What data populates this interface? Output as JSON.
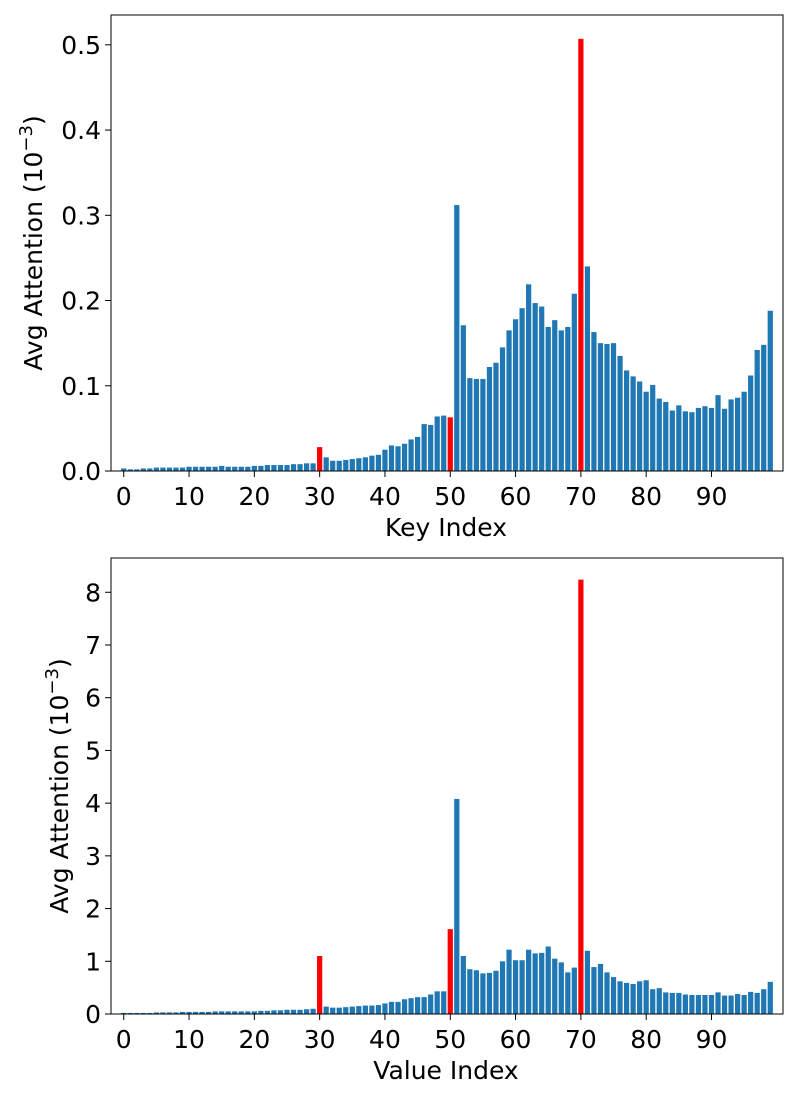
{
  "chart_data": [
    {
      "type": "bar",
      "xlabel": "Key Index",
      "ylabel": "Avg Attention (10",
      "ylabel_exponent": "−3",
      "ylabel_suffix": ")",
      "ylim": [
        0,
        0.535
      ],
      "yticks": [
        0.0,
        0.1,
        0.2,
        0.3,
        0.4,
        0.5
      ],
      "ytick_labels": [
        "0.0",
        "0.1",
        "0.2",
        "0.3",
        "0.4",
        "0.5"
      ],
      "xticks": [
        0,
        10,
        20,
        30,
        40,
        50,
        60,
        70,
        80,
        90
      ],
      "xtick_labels": [
        "0",
        "10",
        "20",
        "30",
        "40",
        "50",
        "60",
        "70",
        "80",
        "90"
      ],
      "bar_color": "#1f77b4",
      "highlight_color": "#ff0000",
      "highlight_indices": [
        30,
        50,
        70
      ],
      "x": [
        0,
        1,
        2,
        3,
        4,
        5,
        6,
        7,
        8,
        9,
        10,
        11,
        12,
        13,
        14,
        15,
        16,
        17,
        18,
        19,
        20,
        21,
        22,
        23,
        24,
        25,
        26,
        27,
        28,
        29,
        30,
        31,
        32,
        33,
        34,
        35,
        36,
        37,
        38,
        39,
        40,
        41,
        42,
        43,
        44,
        45,
        46,
        47,
        48,
        49,
        50,
        51,
        52,
        53,
        54,
        55,
        56,
        57,
        58,
        59,
        60,
        61,
        62,
        63,
        64,
        65,
        66,
        67,
        68,
        69,
        70,
        71,
        72,
        73,
        74,
        75,
        76,
        77,
        78,
        79,
        80,
        81,
        82,
        83,
        84,
        85,
        86,
        87,
        88,
        89,
        90,
        91,
        92,
        93,
        94,
        95,
        96,
        97,
        98,
        99
      ],
      "values": [
        0.003,
        0.002,
        0.002,
        0.003,
        0.003,
        0.004,
        0.004,
        0.004,
        0.004,
        0.004,
        0.005,
        0.005,
        0.005,
        0.005,
        0.005,
        0.006,
        0.005,
        0.005,
        0.005,
        0.005,
        0.006,
        0.006,
        0.007,
        0.007,
        0.007,
        0.007,
        0.008,
        0.008,
        0.009,
        0.009,
        0.028,
        0.016,
        0.012,
        0.012,
        0.013,
        0.014,
        0.015,
        0.016,
        0.018,
        0.019,
        0.025,
        0.03,
        0.029,
        0.032,
        0.037,
        0.04,
        0.055,
        0.054,
        0.064,
        0.065,
        0.063,
        0.312,
        0.171,
        0.109,
        0.108,
        0.108,
        0.122,
        0.127,
        0.145,
        0.165,
        0.178,
        0.191,
        0.219,
        0.197,
        0.193,
        0.169,
        0.177,
        0.165,
        0.169,
        0.208,
        0.507,
        0.24,
        0.163,
        0.15,
        0.149,
        0.15,
        0.135,
        0.118,
        0.111,
        0.105,
        0.093,
        0.101,
        0.085,
        0.081,
        0.071,
        0.077,
        0.07,
        0.069,
        0.074,
        0.076,
        0.074,
        0.089,
        0.073,
        0.084,
        0.086,
        0.093,
        0.112,
        0.142,
        0.148,
        0.188
      ]
    },
    {
      "type": "bar",
      "xlabel": "Value Index",
      "ylabel": "Avg Attention (10",
      "ylabel_exponent": "−3",
      "ylabel_suffix": ")",
      "ylim": [
        0,
        8.65
      ],
      "yticks": [
        0,
        1,
        2,
        3,
        4,
        5,
        6,
        7,
        8
      ],
      "ytick_labels": [
        "0",
        "1",
        "2",
        "3",
        "4",
        "5",
        "6",
        "7",
        "8"
      ],
      "xticks": [
        0,
        10,
        20,
        30,
        40,
        50,
        60,
        70,
        80,
        90
      ],
      "xtick_labels": [
        "0",
        "10",
        "20",
        "30",
        "40",
        "50",
        "60",
        "70",
        "80",
        "90"
      ],
      "bar_color": "#1f77b4",
      "highlight_color": "#ff0000",
      "highlight_indices": [
        30,
        50,
        70
      ],
      "x": [
        0,
        1,
        2,
        3,
        4,
        5,
        6,
        7,
        8,
        9,
        10,
        11,
        12,
        13,
        14,
        15,
        16,
        17,
        18,
        19,
        20,
        21,
        22,
        23,
        24,
        25,
        26,
        27,
        28,
        29,
        30,
        31,
        32,
        33,
        34,
        35,
        36,
        37,
        38,
        39,
        40,
        41,
        42,
        43,
        44,
        45,
        46,
        47,
        48,
        49,
        50,
        51,
        52,
        53,
        54,
        55,
        56,
        57,
        58,
        59,
        60,
        61,
        62,
        63,
        64,
        65,
        66,
        67,
        68,
        69,
        70,
        71,
        72,
        73,
        74,
        75,
        76,
        77,
        78,
        79,
        80,
        81,
        82,
        83,
        84,
        85,
        86,
        87,
        88,
        89,
        90,
        91,
        92,
        93,
        94,
        95,
        96,
        97,
        98,
        99
      ],
      "values": [
        0.02,
        0.02,
        0.02,
        0.02,
        0.02,
        0.03,
        0.03,
        0.03,
        0.03,
        0.04,
        0.04,
        0.04,
        0.04,
        0.04,
        0.05,
        0.05,
        0.05,
        0.05,
        0.05,
        0.05,
        0.05,
        0.06,
        0.06,
        0.07,
        0.07,
        0.08,
        0.08,
        0.08,
        0.09,
        0.1,
        1.1,
        0.14,
        0.12,
        0.12,
        0.13,
        0.14,
        0.15,
        0.16,
        0.16,
        0.17,
        0.2,
        0.23,
        0.23,
        0.28,
        0.3,
        0.32,
        0.32,
        0.37,
        0.43,
        0.43,
        1.61,
        4.08,
        1.1,
        0.85,
        0.83,
        0.77,
        0.78,
        0.82,
        1.0,
        1.22,
        1.02,
        1.02,
        1.22,
        1.15,
        1.16,
        1.28,
        1.05,
        0.98,
        0.79,
        0.88,
        8.24,
        1.2,
        0.89,
        0.95,
        0.79,
        0.7,
        0.62,
        0.59,
        0.57,
        0.62,
        0.64,
        0.47,
        0.49,
        0.41,
        0.4,
        0.4,
        0.37,
        0.36,
        0.36,
        0.36,
        0.36,
        0.41,
        0.35,
        0.35,
        0.38,
        0.36,
        0.42,
        0.4,
        0.47,
        0.61
      ]
    }
  ]
}
